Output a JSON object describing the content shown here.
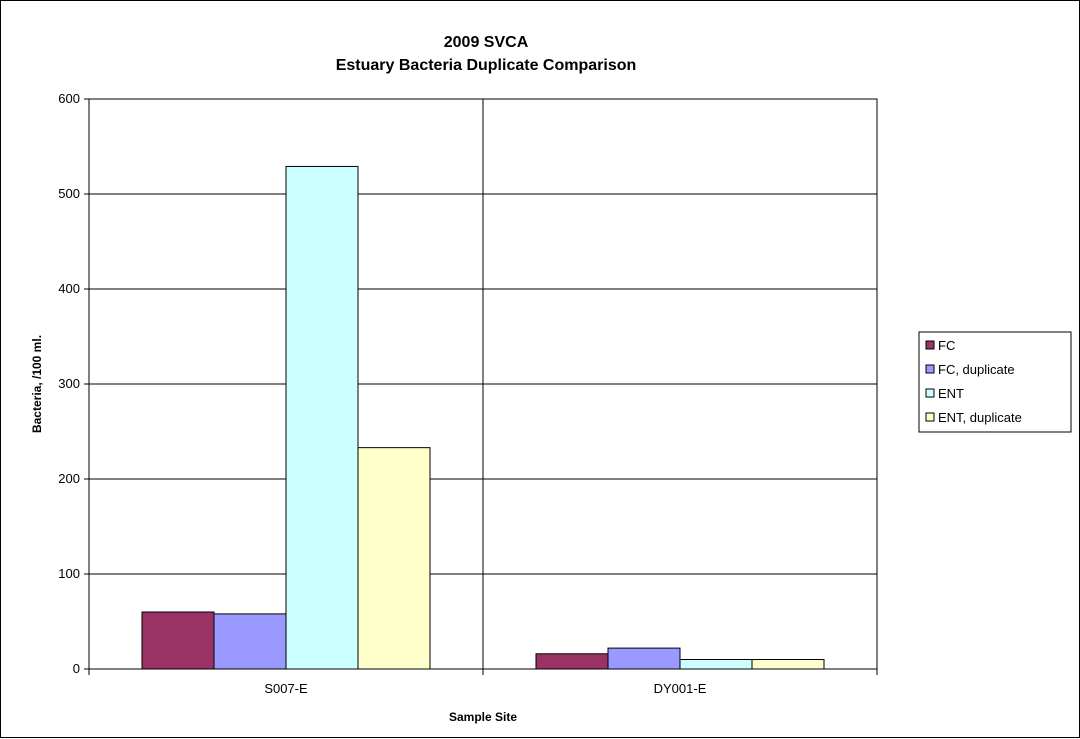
{
  "chart_data": {
    "type": "bar",
    "title_lines": [
      "2009 SVCA",
      "Estuary Bacteria Duplicate Comparison"
    ],
    "xlabel": "Sample Site",
    "ylabel": "Bacteria, /100 ml.",
    "categories": [
      "S007-E",
      "DY001-E"
    ],
    "ylim": [
      0,
      600
    ],
    "yticks": [
      0,
      100,
      200,
      300,
      400,
      500,
      600
    ],
    "grid": true,
    "legend_position": "right",
    "series": [
      {
        "name": "FC",
        "values": [
          60,
          16
        ],
        "color": "#993366"
      },
      {
        "name": "FC, duplicate",
        "values": [
          58,
          22
        ],
        "color": "#9999FF"
      },
      {
        "name": "ENT",
        "values": [
          529,
          10
        ],
        "color": "#CCFFFF"
      },
      {
        "name": "ENT, duplicate",
        "values": [
          233,
          10
        ],
        "color": "#FFFFCC"
      }
    ]
  }
}
